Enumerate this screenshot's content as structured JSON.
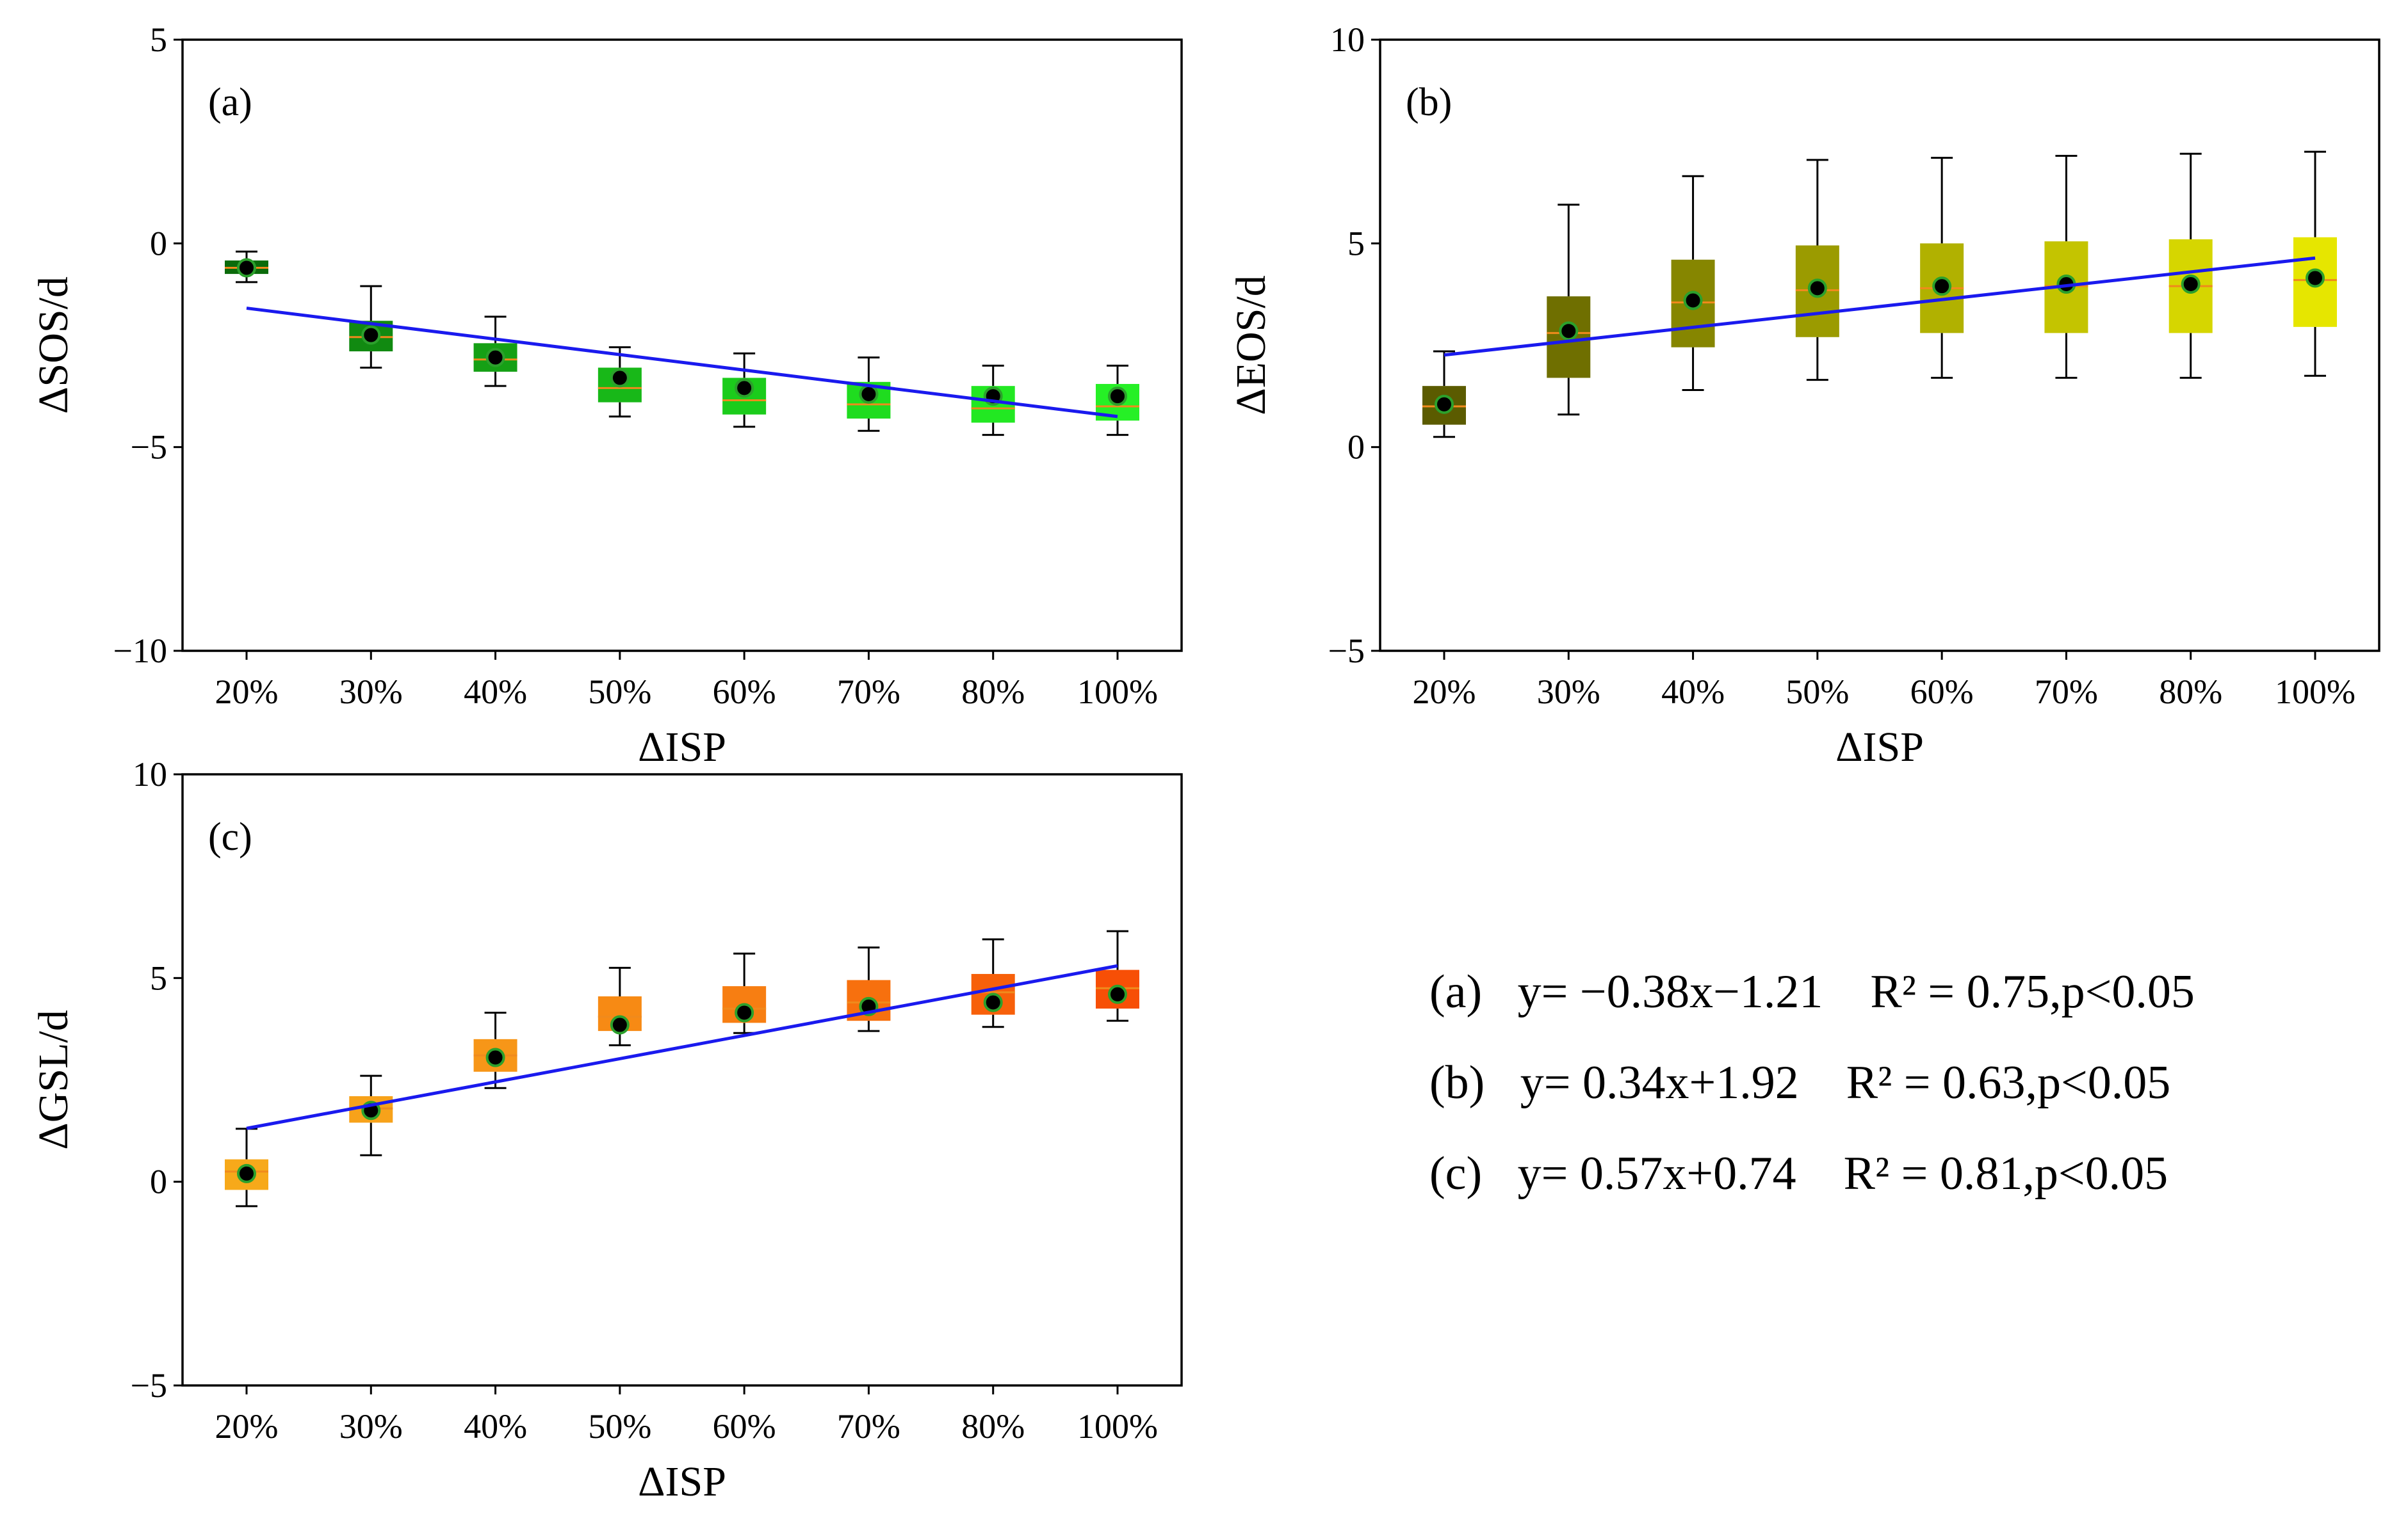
{
  "chart_data": [
    {
      "type": "box",
      "panel_label": "(a)",
      "xlabel": "ΔISP",
      "ylabel": "ΔSOS/d",
      "categories": [
        "20%",
        "30%",
        "40%",
        "50%",
        "60%",
        "70%",
        "80%",
        "100%"
      ],
      "ylim": [
        -10,
        5
      ],
      "yticks": [
        5,
        0,
        -5,
        -10
      ],
      "ytick_labels": [
        "5",
        "0",
        "−5",
        "−10"
      ],
      "box_colors": [
        "#0b6b0b",
        "#118a11",
        "#15a015",
        "#18b818",
        "#1bcc1b",
        "#1fdc1f",
        "#22e822",
        "#26f026"
      ],
      "whisker_low": [
        -0.95,
        -3.05,
        -3.5,
        -4.25,
        -4.5,
        -4.6,
        -4.7,
        -4.7
      ],
      "q1": [
        -0.75,
        -2.65,
        -3.15,
        -3.9,
        -4.2,
        -4.3,
        -4.4,
        -4.35
      ],
      "median": [
        -0.6,
        -2.3,
        -2.85,
        -3.55,
        -3.85,
        -3.95,
        -4.05,
        -4.0
      ],
      "q3": [
        -0.42,
        -1.9,
        -2.45,
        -3.05,
        -3.3,
        -3.4,
        -3.5,
        -3.45
      ],
      "whisker_high": [
        -0.2,
        -1.05,
        -1.8,
        -2.55,
        -2.7,
        -2.8,
        -3.0,
        -3.0
      ],
      "mean": [
        -0.6,
        -2.25,
        -2.8,
        -3.3,
        -3.55,
        -3.7,
        -3.75,
        -3.75
      ],
      "fit": {
        "slope": -0.38,
        "intercept": -1.21,
        "color": "#1a1aee"
      }
    },
    {
      "type": "box",
      "panel_label": "(b)",
      "xlabel": "ΔISP",
      "ylabel": "ΔEOS/d",
      "categories": [
        "20%",
        "30%",
        "40%",
        "50%",
        "60%",
        "70%",
        "80%",
        "100%"
      ],
      "ylim": [
        -5,
        10
      ],
      "yticks": [
        10,
        5,
        0,
        -5
      ],
      "ytick_labels": [
        "10",
        "5",
        "0",
        "−5"
      ],
      "box_colors": [
        "#5b5b00",
        "#6f6f00",
        "#868600",
        "#9b9b00",
        "#b1b100",
        "#c4c400",
        "#d6d600",
        "#e6e600"
      ],
      "whisker_low": [
        0.25,
        0.8,
        1.4,
        1.65,
        1.7,
        1.7,
        1.7,
        1.75
      ],
      "q1": [
        0.55,
        1.7,
        2.45,
        2.7,
        2.8,
        2.8,
        2.8,
        2.95
      ],
      "median": [
        1.0,
        2.8,
        3.55,
        3.85,
        3.9,
        3.95,
        3.95,
        4.1
      ],
      "q3": [
        1.5,
        3.7,
        4.6,
        4.95,
        5.0,
        5.05,
        5.1,
        5.15
      ],
      "whisker_high": [
        2.35,
        5.95,
        6.65,
        7.05,
        7.1,
        7.15,
        7.2,
        7.25
      ],
      "mean": [
        1.05,
        2.85,
        3.6,
        3.9,
        3.95,
        4.0,
        4.0,
        4.15
      ],
      "fit": {
        "slope": 0.34,
        "intercept": 1.92,
        "color": "#1a1aee"
      }
    },
    {
      "type": "box",
      "panel_label": "(c)",
      "xlabel": "ΔISP",
      "ylabel": "ΔGSL/d",
      "categories": [
        "20%",
        "30%",
        "40%",
        "50%",
        "60%",
        "70%",
        "80%",
        "100%"
      ],
      "ylim": [
        -5,
        10
      ],
      "yticks": [
        10,
        5,
        0,
        -5
      ],
      "ytick_labels": [
        "10",
        "5",
        "0",
        "−5"
      ],
      "box_colors": [
        "#f7a91a",
        "#f7a21a",
        "#f79618",
        "#f78a14",
        "#f77e12",
        "#f7700e",
        "#f7600a",
        "#f74f06"
      ],
      "whisker_low": [
        -0.6,
        0.65,
        2.3,
        3.35,
        3.65,
        3.7,
        3.8,
        3.95
      ],
      "q1": [
        -0.2,
        1.45,
        2.7,
        3.7,
        3.9,
        3.95,
        4.1,
        4.25
      ],
      "median": [
        0.25,
        1.8,
        3.1,
        4.05,
        4.25,
        4.4,
        4.65,
        4.75
      ],
      "q3": [
        0.55,
        2.1,
        3.5,
        4.55,
        4.8,
        4.95,
        5.1,
        5.2
      ],
      "whisker_high": [
        1.3,
        2.6,
        4.15,
        5.25,
        5.6,
        5.75,
        5.95,
        6.15
      ],
      "mean": [
        0.2,
        1.75,
        3.05,
        3.85,
        4.15,
        4.3,
        4.4,
        4.6
      ],
      "fit": {
        "slope": 0.57,
        "intercept": 0.74,
        "color": "#1a1aee"
      }
    }
  ],
  "equations": [
    {
      "text": "(a)   y= −0.38x−1.21    R² = 0.75,p<0.05"
    },
    {
      "text": "(b)   y= 0.34x+1.92    R² = 0.63,p<0.05"
    },
    {
      "text": "(c)   y= 0.57x+0.74    R² = 0.81,p<0.05"
    }
  ]
}
